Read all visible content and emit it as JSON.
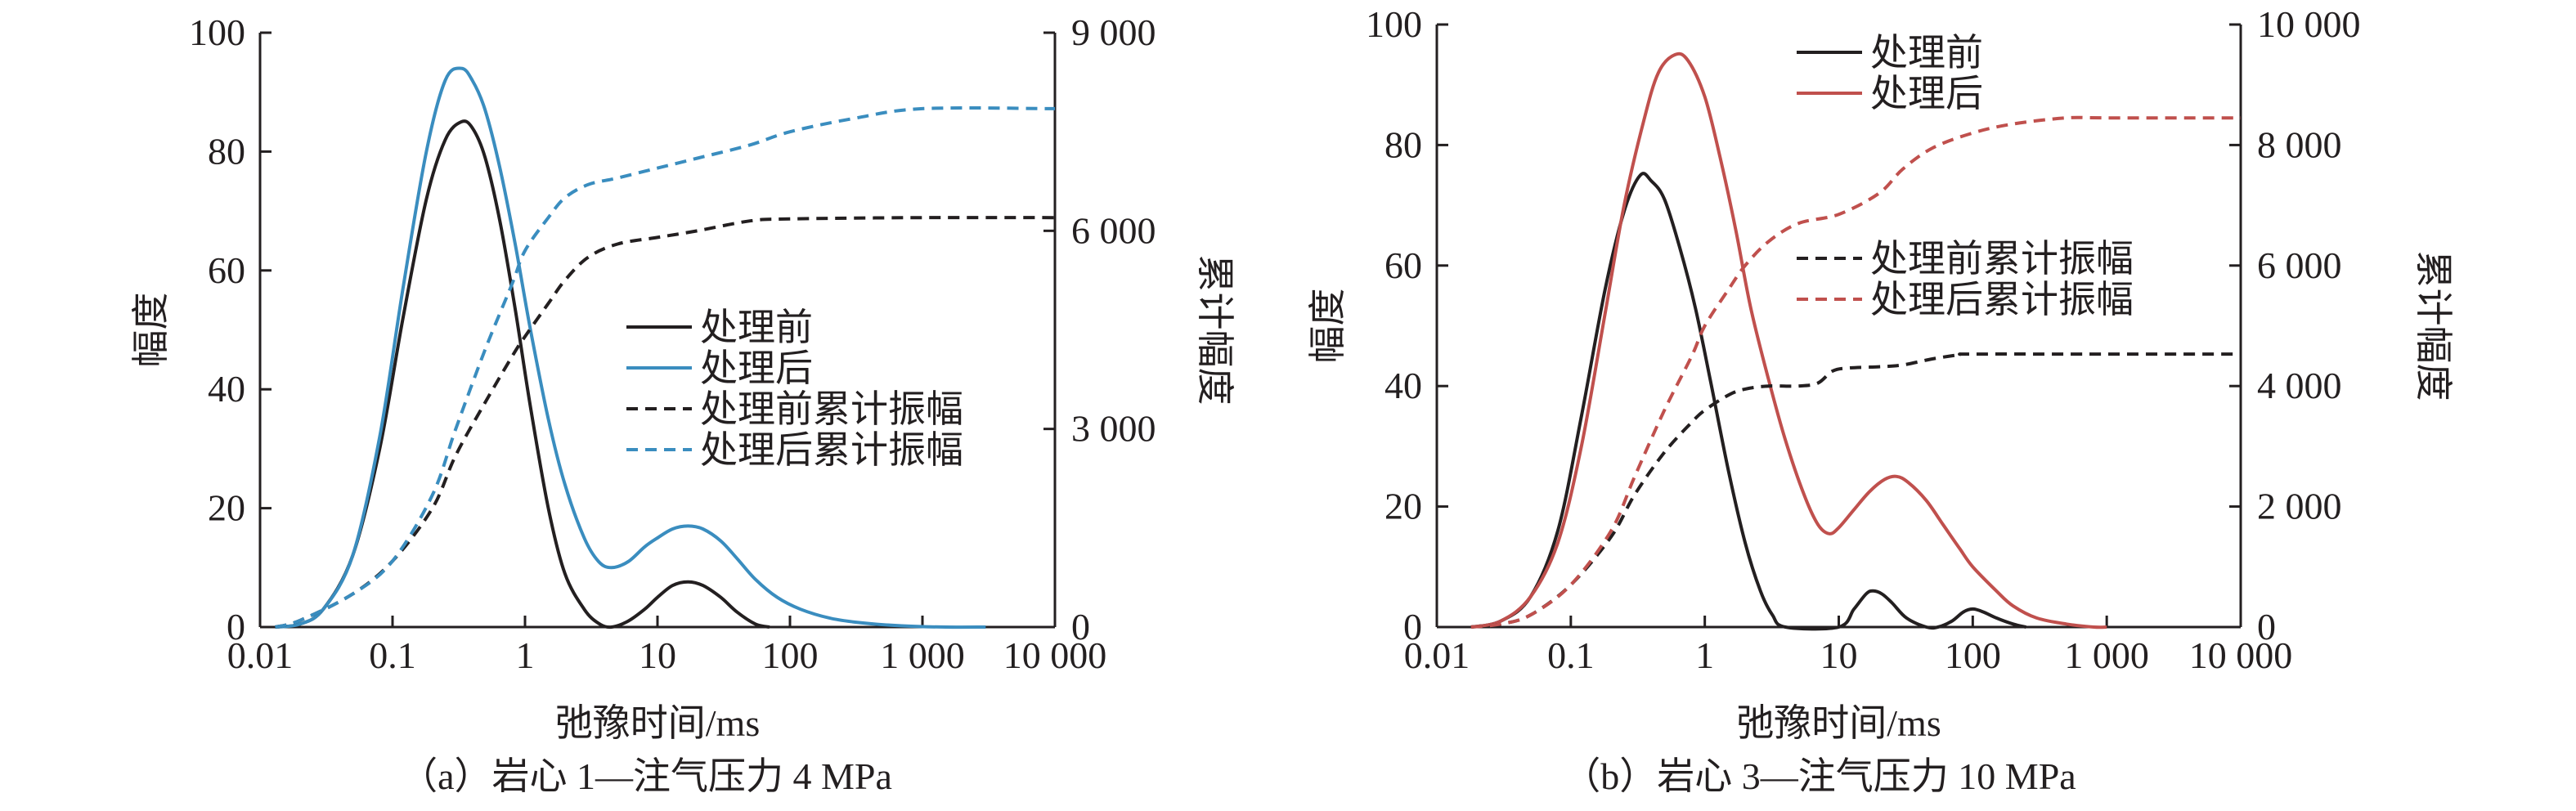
{
  "chart_data": [
    {
      "type": "line",
      "caption": "（a）岩心 1—注气压力 4 MPa",
      "xlabel": "弛豫时间/ms",
      "ylabel": "幅度",
      "y2label": "累计幅度",
      "xscale": "log",
      "xlim": [
        0.01,
        10000
      ],
      "ylim": [
        0,
        100
      ],
      "y2lim": [
        0,
        9000
      ],
      "xticks": [
        0.01,
        0.1,
        1,
        10,
        100,
        1000,
        10000
      ],
      "xtick_labels": [
        "0.01",
        "0.1",
        "1",
        "10",
        "100",
        "1 000",
        "10 000"
      ],
      "yticks": [
        0,
        20,
        40,
        60,
        80,
        100
      ],
      "ytick_labels": [
        "0",
        "20",
        "40",
        "60",
        "80",
        "100"
      ],
      "y2ticks": [
        0,
        3000,
        6000,
        9000
      ],
      "y2tick_labels": [
        "0",
        "3 000",
        "6 000",
        "9 000"
      ],
      "legend": "center-right",
      "grid": false,
      "series": [
        {
          "name": "处理前",
          "axis": "left",
          "style": "solid",
          "color": "#231f20",
          "x": [
            0.013,
            0.02,
            0.03,
            0.05,
            0.08,
            0.12,
            0.18,
            0.25,
            0.33,
            0.4,
            0.5,
            0.65,
            0.85,
            1.1,
            1.5,
            2,
            2.8,
            3.6,
            4.5,
            6,
            8,
            10,
            13,
            17,
            22,
            30,
            40,
            55,
            70
          ],
          "y": [
            0,
            0.5,
            3,
            12,
            30,
            52,
            72,
            82,
            85,
            84,
            79,
            68,
            53,
            37,
            20,
            9,
            3,
            0.6,
            0,
            1,
            3,
            5,
            7,
            7.6,
            7,
            5,
            2.5,
            0.5,
            0
          ]
        },
        {
          "name": "处理后",
          "axis": "left",
          "style": "solid",
          "color": "#3a8dbf",
          "x": [
            0.013,
            0.02,
            0.03,
            0.05,
            0.08,
            0.12,
            0.18,
            0.25,
            0.33,
            0.4,
            0.5,
            0.65,
            0.85,
            1.1,
            1.5,
            2,
            2.8,
            3.6,
            4.5,
            6,
            8,
            10,
            13,
            17,
            22,
            30,
            40,
            55,
            80,
            120,
            200,
            350,
            700,
            1500,
            3000
          ],
          "y": [
            0,
            0.5,
            3,
            12,
            32,
            57,
            80,
            92,
            94,
            92,
            87,
            77,
            64,
            50,
            35,
            24,
            15,
            11,
            10,
            11,
            13.5,
            15,
            16.5,
            17,
            16.5,
            14.5,
            11.5,
            8,
            5,
            3,
            1.5,
            0.7,
            0.2,
            0,
            0
          ]
        },
        {
          "name": "处理前累计振幅",
          "axis": "right",
          "style": "dashed",
          "color": "#231f20",
          "x": [
            0.013,
            0.02,
            0.05,
            0.1,
            0.2,
            0.3,
            0.5,
            0.8,
            1,
            1.5,
            2,
            3,
            5,
            10,
            20,
            50,
            100,
            1000,
            10000
          ],
          "y": [
            0,
            100,
            500,
            1000,
            1800,
            2600,
            3400,
            4100,
            4400,
            4900,
            5250,
            5600,
            5800,
            5900,
            6000,
            6150,
            6180,
            6200,
            6200
          ]
        },
        {
          "name": "处理后累计振幅",
          "axis": "right",
          "style": "dashed",
          "color": "#3a8dbf",
          "x": [
            0.013,
            0.02,
            0.05,
            0.1,
            0.2,
            0.3,
            0.5,
            0.8,
            1,
            1.5,
            2,
            3,
            5,
            10,
            20,
            50,
            100,
            300,
            1000,
            10000
          ],
          "y": [
            0,
            100,
            500,
            1000,
            2000,
            3000,
            4200,
            5200,
            5700,
            6200,
            6500,
            6700,
            6800,
            6950,
            7100,
            7300,
            7500,
            7700,
            7850,
            7850
          ]
        }
      ]
    },
    {
      "type": "line",
      "caption": "（b）岩心 3—注气压力 10 MPa",
      "xlabel": "弛豫时间/ms",
      "ylabel": "幅度",
      "y2label": "累计幅度",
      "xscale": "log",
      "xlim": [
        0.01,
        10000
      ],
      "ylim": [
        0,
        100
      ],
      "y2lim": [
        0,
        10000
      ],
      "xticks": [
        0.01,
        0.1,
        1,
        10,
        100,
        1000,
        10000
      ],
      "xtick_labels": [
        "0.01",
        "0.1",
        "1",
        "10",
        "100",
        "1 000",
        "10 000"
      ],
      "yticks": [
        0,
        20,
        40,
        60,
        80,
        100
      ],
      "ytick_labels": [
        "0",
        "20",
        "40",
        "60",
        "80",
        "100"
      ],
      "y2ticks": [
        0,
        2000,
        4000,
        6000,
        8000,
        10000
      ],
      "y2tick_labels": [
        "0",
        "2 000",
        "4 000",
        "6 000",
        "8 000",
        "10 000"
      ],
      "legend_top": "top-center",
      "legend_mid": "center-right",
      "grid": false,
      "series": [
        {
          "name": "处理前",
          "axis": "left",
          "style": "solid",
          "color": "#231f20",
          "x": [
            0.018,
            0.03,
            0.05,
            0.08,
            0.12,
            0.18,
            0.25,
            0.33,
            0.4,
            0.5,
            0.65,
            0.85,
            1.1,
            1.5,
            2,
            2.6,
            3.2,
            4,
            10,
            13,
            16,
            18,
            21,
            25,
            32,
            45,
            55,
            70,
            85,
            100,
            120,
            150,
            200,
            250
          ],
          "y": [
            0,
            1,
            5,
            16,
            35,
            56,
            69,
            75,
            74,
            71,
            63,
            53,
            41,
            26,
            14,
            6,
            2,
            0,
            0,
            3,
            5.5,
            6,
            5.5,
            4,
            1.5,
            0,
            0,
            1,
            2.5,
            3,
            2.5,
            1.5,
            0.5,
            0
          ]
        },
        {
          "name": "处理后",
          "axis": "left",
          "style": "solid",
          "color": "#c0504d",
          "x": [
            0.018,
            0.03,
            0.05,
            0.08,
            0.12,
            0.18,
            0.25,
            0.35,
            0.45,
            0.6,
            0.75,
            1,
            1.3,
            1.7,
            2.2,
            3,
            4,
            5.5,
            7,
            8.5,
            10,
            13,
            17,
            22,
            27,
            33,
            45,
            60,
            80,
            100,
            150,
            200,
            300,
            500,
            800,
            1000
          ],
          "y": [
            0,
            1,
            5,
            14,
            30,
            52,
            70,
            84,
            92,
            95,
            94,
            88,
            78,
            66,
            53,
            41,
            31,
            22,
            17,
            15.5,
            16.5,
            19.5,
            22.5,
            24.5,
            25,
            24,
            21,
            17,
            13,
            10,
            6,
            3.5,
            1.5,
            0.5,
            0,
            0
          ]
        },
        {
          "name": "处理前累计振幅",
          "axis": "right",
          "style": "dashed",
          "color": "#231f20",
          "x": [
            0.018,
            0.03,
            0.05,
            0.1,
            0.2,
            0.3,
            0.5,
            0.8,
            1,
            1.5,
            2,
            3,
            5,
            7,
            9,
            12,
            20,
            30,
            50,
            80,
            100,
            1000,
            10000
          ],
          "y": [
            0,
            50,
            200,
            700,
            1500,
            2200,
            2900,
            3400,
            3600,
            3850,
            3950,
            4000,
            4000,
            4050,
            4250,
            4300,
            4320,
            4350,
            4450,
            4520,
            4530,
            4530,
            4530
          ]
        },
        {
          "name": "处理后累计振幅",
          "axis": "right",
          "style": "dashed",
          "color": "#c0504d",
          "x": [
            0.018,
            0.03,
            0.05,
            0.1,
            0.2,
            0.3,
            0.5,
            0.8,
            1,
            1.5,
            2,
            3,
            5,
            10,
            20,
            30,
            50,
            100,
            200,
            500,
            1000,
            10000
          ],
          "y": [
            0,
            50,
            200,
            700,
            1600,
            2500,
            3600,
            4500,
            5000,
            5600,
            6000,
            6400,
            6700,
            6850,
            7200,
            7600,
            7950,
            8200,
            8350,
            8450,
            8450,
            8450
          ]
        }
      ]
    }
  ]
}
